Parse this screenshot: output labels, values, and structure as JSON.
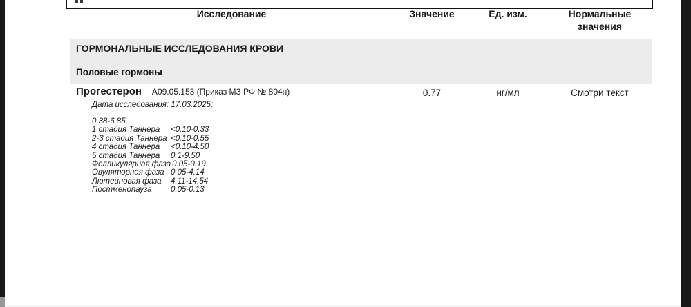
{
  "colors": {
    "bar": "#181818",
    "band": "#ececec",
    "text": "#1b1b1b"
  },
  "table": {
    "headers": {
      "study": "Исследование",
      "value": "Значение",
      "unit": "Ед. изм.",
      "normal_line1": "Нормальные",
      "normal_line2": "значения"
    }
  },
  "sections": {
    "main": "ГОРМОНАЛЬНЫЕ ИССЛЕДОВАНИЯ КРОВИ",
    "sub": "Половые гормоны"
  },
  "result": {
    "name": "Прогестерон",
    "code": "A09.05.153 (Приказ МЗ РФ № 804н)",
    "value": "0.77",
    "unit": "нг/мл",
    "normal": "Смотри текст",
    "date_note": "Дата исследования: 17.03.2025;"
  },
  "reference": {
    "rows": [
      {
        "label": "",
        "value": "0,38-6,85"
      },
      {
        "label": "1 стадия Таннера",
        "value": "<0.10-0.33"
      },
      {
        "label": "2-3 стадия Таннера",
        "value": "<0.10-0.55"
      },
      {
        "label": "4 стадия Таннера",
        "value": "<0.10-4.50"
      },
      {
        "label": "5 стадия Таннера",
        "value": "0.1-9.50"
      },
      {
        "label": "Фолликулярная фаза",
        "value": "0.05-0.19"
      },
      {
        "label": "Овуляторная фаза",
        "value": "0.05-4.14"
      },
      {
        "label": "Лютеиновая фаза",
        "value": "4.11-14.54"
      },
      {
        "label": "Постменопауза",
        "value": "0.05-0.13"
      }
    ]
  }
}
